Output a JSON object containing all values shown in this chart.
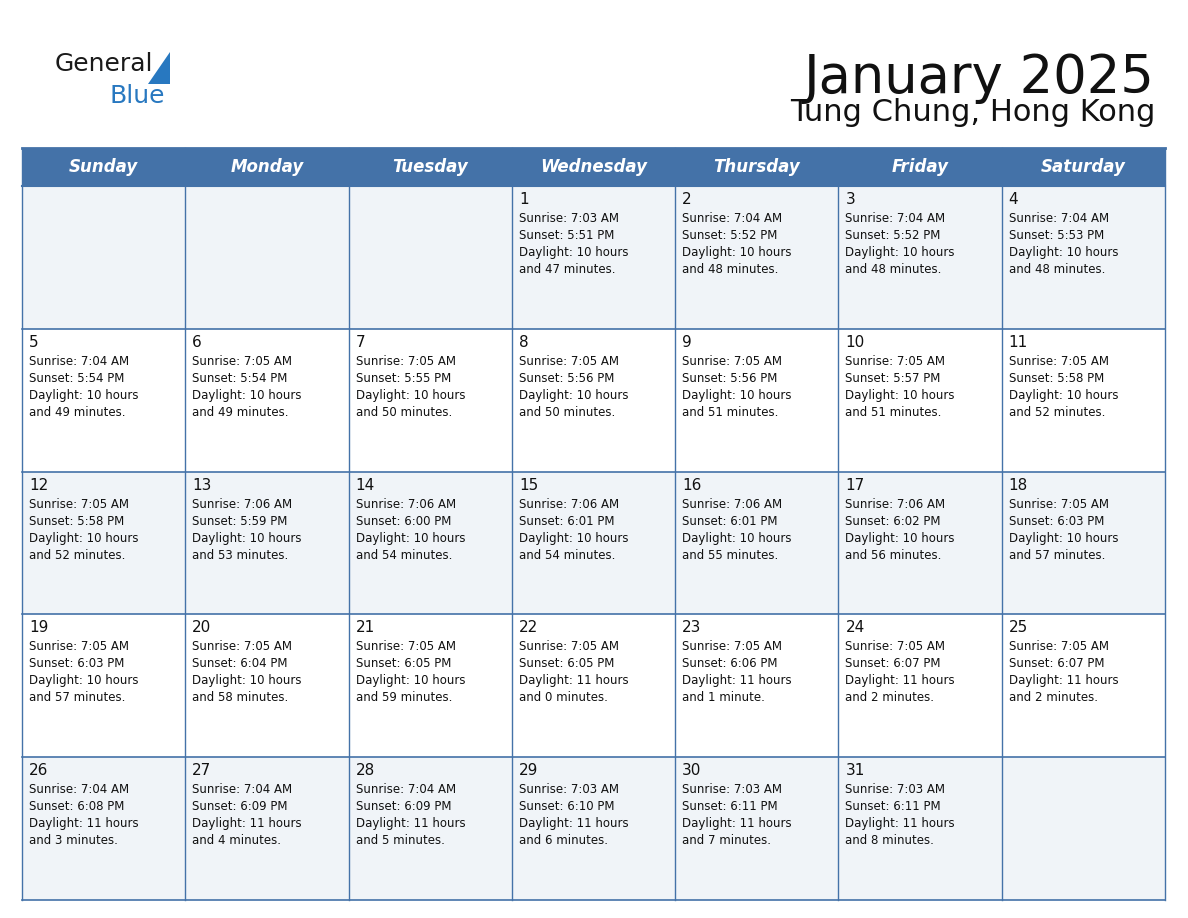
{
  "title": "January 2025",
  "subtitle": "Tung Chung, Hong Kong",
  "header_color": "#4472a8",
  "header_text_color": "#ffffff",
  "border_color": "#4472a8",
  "row_line_color": "#4472a8",
  "day_headers": [
    "Sunday",
    "Monday",
    "Tuesday",
    "Wednesday",
    "Thursday",
    "Friday",
    "Saturday"
  ],
  "title_fontsize": 38,
  "subtitle_fontsize": 22,
  "header_fontsize": 12,
  "day_num_fontsize": 11,
  "cell_fontsize": 8.5,
  "logo_general_color": "#1a1a1a",
  "logo_blue_color": "#2878c0",
  "logo_tri_color": "#2878c0",
  "days": [
    {
      "day": 1,
      "col": 3,
      "row": 0,
      "sunrise": "7:03 AM",
      "sunset": "5:51 PM",
      "daylight": "10 hours and 47 minutes."
    },
    {
      "day": 2,
      "col": 4,
      "row": 0,
      "sunrise": "7:04 AM",
      "sunset": "5:52 PM",
      "daylight": "10 hours and 48 minutes."
    },
    {
      "day": 3,
      "col": 5,
      "row": 0,
      "sunrise": "7:04 AM",
      "sunset": "5:52 PM",
      "daylight": "10 hours and 48 minutes."
    },
    {
      "day": 4,
      "col": 6,
      "row": 0,
      "sunrise": "7:04 AM",
      "sunset": "5:53 PM",
      "daylight": "10 hours and 48 minutes."
    },
    {
      "day": 5,
      "col": 0,
      "row": 1,
      "sunrise": "7:04 AM",
      "sunset": "5:54 PM",
      "daylight": "10 hours and 49 minutes."
    },
    {
      "day": 6,
      "col": 1,
      "row": 1,
      "sunrise": "7:05 AM",
      "sunset": "5:54 PM",
      "daylight": "10 hours and 49 minutes."
    },
    {
      "day": 7,
      "col": 2,
      "row": 1,
      "sunrise": "7:05 AM",
      "sunset": "5:55 PM",
      "daylight": "10 hours and 50 minutes."
    },
    {
      "day": 8,
      "col": 3,
      "row": 1,
      "sunrise": "7:05 AM",
      "sunset": "5:56 PM",
      "daylight": "10 hours and 50 minutes."
    },
    {
      "day": 9,
      "col": 4,
      "row": 1,
      "sunrise": "7:05 AM",
      "sunset": "5:56 PM",
      "daylight": "10 hours and 51 minutes."
    },
    {
      "day": 10,
      "col": 5,
      "row": 1,
      "sunrise": "7:05 AM",
      "sunset": "5:57 PM",
      "daylight": "10 hours and 51 minutes."
    },
    {
      "day": 11,
      "col": 6,
      "row": 1,
      "sunrise": "7:05 AM",
      "sunset": "5:58 PM",
      "daylight": "10 hours and 52 minutes."
    },
    {
      "day": 12,
      "col": 0,
      "row": 2,
      "sunrise": "7:05 AM",
      "sunset": "5:58 PM",
      "daylight": "10 hours and 52 minutes."
    },
    {
      "day": 13,
      "col": 1,
      "row": 2,
      "sunrise": "7:06 AM",
      "sunset": "5:59 PM",
      "daylight": "10 hours and 53 minutes."
    },
    {
      "day": 14,
      "col": 2,
      "row": 2,
      "sunrise": "7:06 AM",
      "sunset": "6:00 PM",
      "daylight": "10 hours and 54 minutes."
    },
    {
      "day": 15,
      "col": 3,
      "row": 2,
      "sunrise": "7:06 AM",
      "sunset": "6:01 PM",
      "daylight": "10 hours and 54 minutes."
    },
    {
      "day": 16,
      "col": 4,
      "row": 2,
      "sunrise": "7:06 AM",
      "sunset": "6:01 PM",
      "daylight": "10 hours and 55 minutes."
    },
    {
      "day": 17,
      "col": 5,
      "row": 2,
      "sunrise": "7:06 AM",
      "sunset": "6:02 PM",
      "daylight": "10 hours and 56 minutes."
    },
    {
      "day": 18,
      "col": 6,
      "row": 2,
      "sunrise": "7:05 AM",
      "sunset": "6:03 PM",
      "daylight": "10 hours and 57 minutes."
    },
    {
      "day": 19,
      "col": 0,
      "row": 3,
      "sunrise": "7:05 AM",
      "sunset": "6:03 PM",
      "daylight": "10 hours and 57 minutes."
    },
    {
      "day": 20,
      "col": 1,
      "row": 3,
      "sunrise": "7:05 AM",
      "sunset": "6:04 PM",
      "daylight": "10 hours and 58 minutes."
    },
    {
      "day": 21,
      "col": 2,
      "row": 3,
      "sunrise": "7:05 AM",
      "sunset": "6:05 PM",
      "daylight": "10 hours and 59 minutes."
    },
    {
      "day": 22,
      "col": 3,
      "row": 3,
      "sunrise": "7:05 AM",
      "sunset": "6:05 PM",
      "daylight": "11 hours and 0 minutes."
    },
    {
      "day": 23,
      "col": 4,
      "row": 3,
      "sunrise": "7:05 AM",
      "sunset": "6:06 PM",
      "daylight": "11 hours and 1 minute."
    },
    {
      "day": 24,
      "col": 5,
      "row": 3,
      "sunrise": "7:05 AM",
      "sunset": "6:07 PM",
      "daylight": "11 hours and 2 minutes."
    },
    {
      "day": 25,
      "col": 6,
      "row": 3,
      "sunrise": "7:05 AM",
      "sunset": "6:07 PM",
      "daylight": "11 hours and 2 minutes."
    },
    {
      "day": 26,
      "col": 0,
      "row": 4,
      "sunrise": "7:04 AM",
      "sunset": "6:08 PM",
      "daylight": "11 hours and 3 minutes."
    },
    {
      "day": 27,
      "col": 1,
      "row": 4,
      "sunrise": "7:04 AM",
      "sunset": "6:09 PM",
      "daylight": "11 hours and 4 minutes."
    },
    {
      "day": 28,
      "col": 2,
      "row": 4,
      "sunrise": "7:04 AM",
      "sunset": "6:09 PM",
      "daylight": "11 hours and 5 minutes."
    },
    {
      "day": 29,
      "col": 3,
      "row": 4,
      "sunrise": "7:03 AM",
      "sunset": "6:10 PM",
      "daylight": "11 hours and 6 minutes."
    },
    {
      "day": 30,
      "col": 4,
      "row": 4,
      "sunrise": "7:03 AM",
      "sunset": "6:11 PM",
      "daylight": "11 hours and 7 minutes."
    },
    {
      "day": 31,
      "col": 5,
      "row": 4,
      "sunrise": "7:03 AM",
      "sunset": "6:11 PM",
      "daylight": "11 hours and 8 minutes."
    }
  ]
}
